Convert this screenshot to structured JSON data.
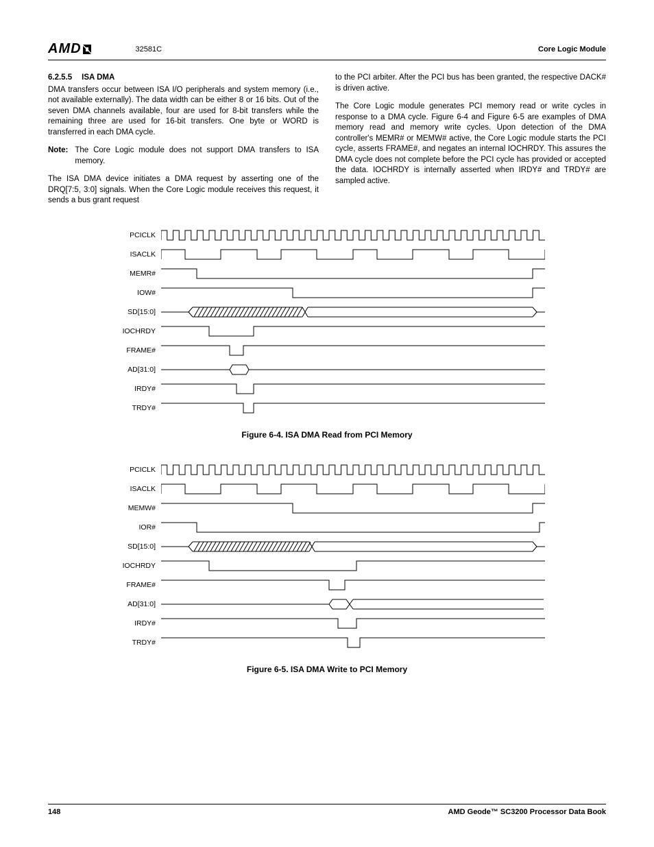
{
  "header": {
    "logo_text": "AMD",
    "doc_id": "32581C",
    "right": "Core Logic Module"
  },
  "section": {
    "number": "6.2.5.5",
    "title": "ISA DMA"
  },
  "col1": {
    "p1": "DMA transfers occur between ISA I/O peripherals and system memory (i.e., not available externally). The data width can be either 8 or 16 bits. Out of the seven DMA channels available, four are used for 8-bit transfers while the remaining three are used for 16-bit transfers. One byte or WORD is transferred in each DMA cycle.",
    "note_label": "Note:",
    "note_body": "The Core Logic module does not support DMA transfers to ISA memory.",
    "p2": "The ISA DMA device initiates a DMA request by asserting one of the DRQ[7:5, 3:0] signals. When the Core Logic module receives this request, it sends a bus grant request"
  },
  "col2": {
    "p1": "to the PCI arbiter. After the PCI bus has been granted, the respective DACK# is driven active.",
    "p2": "The Core Logic module generates PCI memory read or write cycles in response to a DMA cycle. Figure 6-4 and Figure 6-5 are examples of DMA memory read and memory write cycles. Upon detection of the DMA controller's MEMR# or MEMW# active, the Core Logic module starts the PCI cycle, asserts FRAME#, and negates an internal IOCHRDY. This assures the DMA cycle does not complete before the PCI cycle has provided or accepted the data. IOCHRDY is internally asserted when IRDY# and TRDY# are sampled active."
  },
  "figure1": {
    "caption": "Figure 6-4.  ISA DMA Read from PCI Memory",
    "signals": [
      "PCICLK",
      "ISACLK",
      "MEMR#",
      "IOW#",
      "SD[15:0]",
      "IOCHRDY",
      "FRAME#",
      "AD[31:0]",
      "IRDY#",
      "TRDY#"
    ],
    "wave_width": 560,
    "wave_height": 16,
    "stroke": "#000000",
    "clock_period": 17.5,
    "isa_clock_edges": [
      0,
      35,
      87,
      140,
      175,
      227,
      280,
      315,
      367,
      420,
      455,
      507,
      560
    ],
    "memr": {
      "fall": 52,
      "rise": 542
    },
    "iow": {
      "fall": 192,
      "rise": 542
    },
    "sd": {
      "start": 40,
      "mid": 210,
      "end": 548
    },
    "iochrdy": {
      "fall": 70,
      "rise": 135
    },
    "frame": {
      "fall": 100,
      "rise": 120
    },
    "ad": {
      "start": 100,
      "box_end": 128,
      "end": 560
    },
    "irdy": {
      "fall": 110,
      "rise": 135
    },
    "trdy": {
      "fall": 120,
      "rise": 135
    }
  },
  "figure2": {
    "caption": "Figure 6-5.  ISA DMA Write to PCI Memory",
    "signals": [
      "PCICLK",
      "ISACLK",
      "MEMW#",
      "IOR#",
      "SD[15:0]",
      "IOCHRDY",
      "FRAME#",
      "AD[31:0]",
      "IRDY#",
      "TRDY#"
    ],
    "memw": {
      "fall": 192,
      "rise": 542
    },
    "ior": {
      "fall": 52,
      "rise": 552
    },
    "sd": {
      "start": 40,
      "mid": 220,
      "end": 548
    },
    "iochrdy": {
      "fall": 70,
      "rise": 285
    },
    "frame": {
      "fall": 245,
      "rise": 268
    },
    "ad": {
      "start": 245,
      "mid": 275,
      "end": 560
    },
    "irdy": {
      "fall": 258,
      "rise": 285
    },
    "trdy": {
      "fall": 272,
      "rise": 290
    }
  },
  "footer": {
    "page": "148",
    "right": "AMD Geode™ SC3200 Processor Data Book"
  }
}
